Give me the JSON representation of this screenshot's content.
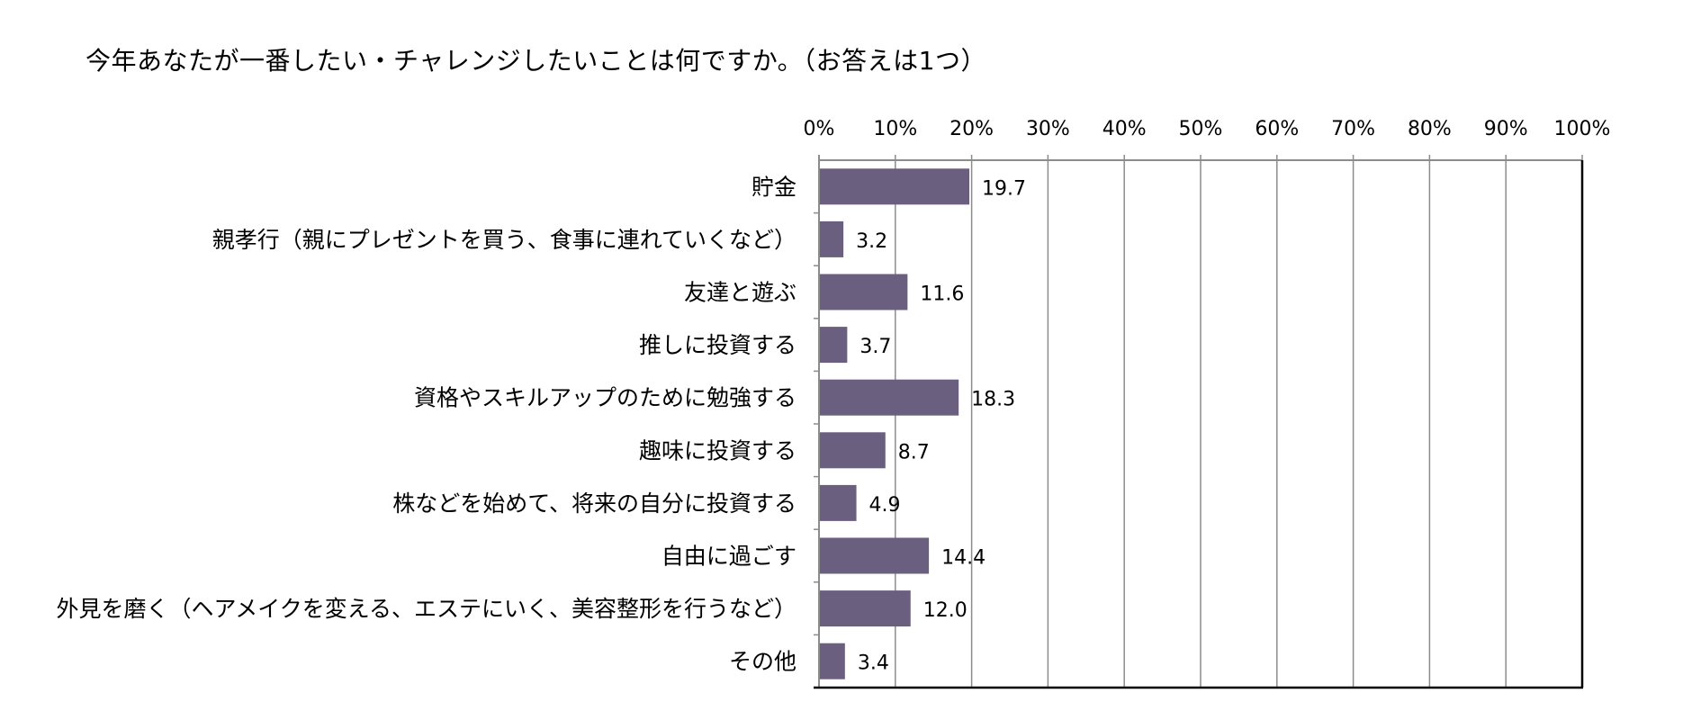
{
  "chart_data": {
    "type": "bar",
    "orientation": "horizontal",
    "title": "今年あなたが一番したい・チャレンジしたいことは何ですか。（お答えは1つ）",
    "categories": [
      "貯金",
      "親孝行（親にプレゼントを買う、食事に連れていくなど）",
      "友達と遊ぶ",
      "推しに投資する",
      "資格やスキルアップのために勉強する",
      "趣味に投資する",
      "株などを始めて、将来の自分に投資する",
      "自由に過ごす",
      "外見を磨く（ヘアメイクを変える、エステにいく、美容整形を行うなど）",
      "その他"
    ],
    "values": [
      19.7,
      3.2,
      11.6,
      3.7,
      18.3,
      8.7,
      4.9,
      14.4,
      12.0,
      3.4
    ],
    "value_labels": [
      "19.7",
      "3.2",
      "11.6",
      "3.7",
      "18.3",
      "8.7",
      "4.9",
      "14.4",
      "12.0",
      "3.4"
    ],
    "xlim": [
      0,
      100
    ],
    "x_ticks": [
      "0%",
      "10%",
      "20%",
      "30%",
      "40%",
      "50%",
      "60%",
      "70%",
      "80%",
      "90%",
      "100%"
    ],
    "x_axis_position": "top",
    "grid": true,
    "legend": "none",
    "bar_color": "#6b5f80",
    "grid_color": "#8c8c8c",
    "axis_color": "#000000"
  }
}
